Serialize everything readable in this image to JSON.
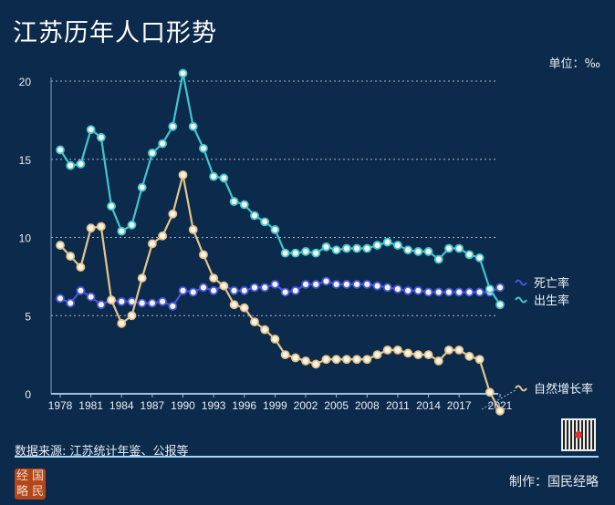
{
  "header": {
    "title": "江苏历年人口形势",
    "unit": "单位：‰"
  },
  "footer": {
    "source": "数据来源: 江苏统计年鉴、公报等",
    "maker": "制作：国民经略",
    "seal_text": [
      "经",
      "国",
      "略",
      "民"
    ]
  },
  "colors": {
    "birth": "#3fc6cf",
    "death": "#4657dc",
    "natural": "#e6c58a",
    "background": "#0c2a4b"
  },
  "chart_data": {
    "type": "line",
    "title": "江苏历年人口形势",
    "ylabel": "单位：‰",
    "ylim": [
      0,
      20
    ],
    "yticks": [
      "0",
      "5",
      "10",
      "15",
      "20"
    ],
    "xticks": [
      "1978",
      "1981",
      "1984",
      "1987",
      "1990",
      "1993",
      "1996",
      "1999",
      "2002",
      "2005",
      "2008",
      "2011",
      "2014",
      "2017",
      "2021"
    ],
    "grid": true,
    "legend_placement": "right",
    "x": [
      1978,
      1979,
      1980,
      1981,
      1982,
      1983,
      1984,
      1985,
      1986,
      1987,
      1988,
      1989,
      1990,
      1991,
      1992,
      1993,
      1994,
      1995,
      1996,
      1997,
      1998,
      1999,
      2000,
      2001,
      2002,
      2003,
      2004,
      2005,
      2006,
      2007,
      2008,
      2009,
      2010,
      2011,
      2012,
      2013,
      2014,
      2015,
      2016,
      2017,
      2018,
      2019,
      2020,
      2021
    ],
    "series": [
      {
        "name": "死亡率",
        "key": "death",
        "values": [
          6.1,
          5.8,
          6.6,
          6.2,
          5.7,
          6.0,
          5.9,
          5.9,
          5.8,
          5.8,
          5.9,
          5.6,
          6.6,
          6.5,
          6.8,
          6.6,
          6.9,
          6.6,
          6.6,
          6.8,
          6.8,
          7.0,
          6.5,
          6.6,
          7.0,
          7.0,
          7.2,
          7.0,
          7.0,
          7.0,
          7.0,
          6.9,
          6.8,
          6.7,
          6.6,
          6.6,
          6.5,
          6.5,
          6.5,
          6.5,
          6.5,
          6.5,
          6.5,
          6.8
        ]
      },
      {
        "name": "出生率",
        "key": "birth",
        "values": [
          15.6,
          14.6,
          14.7,
          16.9,
          16.4,
          12.0,
          10.4,
          10.8,
          13.2,
          15.4,
          16.0,
          17.1,
          20.5,
          17.1,
          15.7,
          13.9,
          13.8,
          12.3,
          12.1,
          11.4,
          11.0,
          10.5,
          9.0,
          9.0,
          9.1,
          9.0,
          9.4,
          9.2,
          9.3,
          9.3,
          9.3,
          9.5,
          9.7,
          9.5,
          9.2,
          9.1,
          9.1,
          8.6,
          9.3,
          9.3,
          8.9,
          8.7,
          6.7,
          5.7
        ]
      },
      {
        "name": "自然增长率",
        "key": "natural",
        "values": [
          9.5,
          8.8,
          8.1,
          10.6,
          10.7,
          6.0,
          4.5,
          5.0,
          7.4,
          9.6,
          10.1,
          11.5,
          14.0,
          10.5,
          8.9,
          7.4,
          6.9,
          5.7,
          5.5,
          4.6,
          4.1,
          3.5,
          2.5,
          2.3,
          2.1,
          1.9,
          2.2,
          2.2,
          2.2,
          2.2,
          2.2,
          2.5,
          2.8,
          2.8,
          2.6,
          2.5,
          2.5,
          2.1,
          2.8,
          2.8,
          2.4,
          2.2,
          0.1,
          -1.1
        ]
      }
    ]
  }
}
